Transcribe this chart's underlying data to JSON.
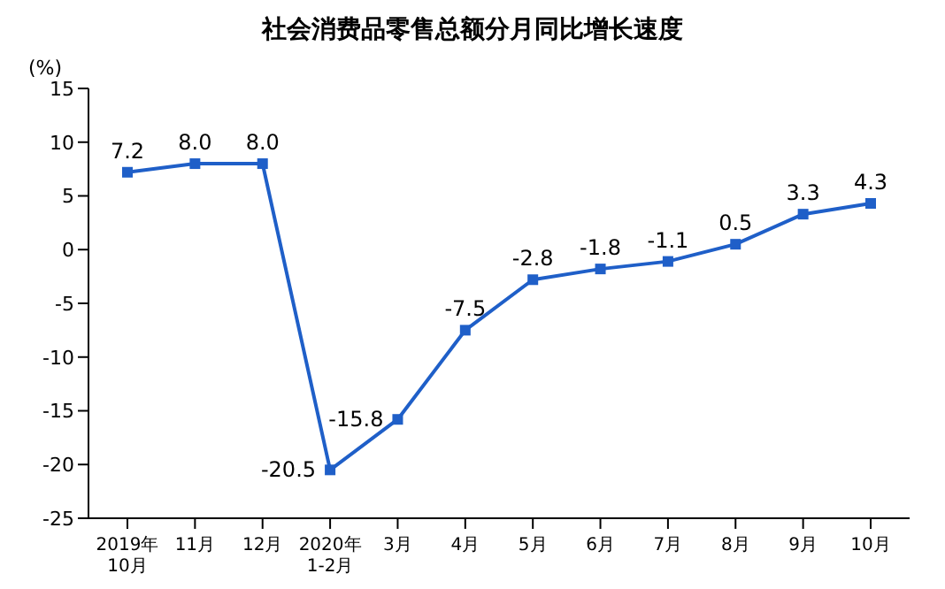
{
  "chart_data": {
    "type": "line",
    "title": "社会消费品零售总额分月同比增长速度",
    "ylabel": "(%)",
    "categories": [
      "2019年\n10月",
      "11月",
      "12月",
      "2020年\n1-2月",
      "3月",
      "4月",
      "5月",
      "6月",
      "7月",
      "8月",
      "9月",
      "10月"
    ],
    "series": [
      {
        "color": "#1f5fc8",
        "values": [
          7.2,
          8.0,
          8.0,
          -20.5,
          -15.8,
          -7.5,
          -2.8,
          -1.8,
          -1.1,
          0.5,
          3.3,
          4.3
        ],
        "value_labels": [
          "7.2",
          "8.0",
          "8.0",
          "-20.5",
          "-15.8",
          "-7.5",
          "-2.8",
          "-1.8",
          "-1.1",
          "0.5",
          "3.3",
          "4.3"
        ]
      }
    ],
    "ylim": [
      -25,
      15
    ],
    "yticks": [
      -25,
      -20,
      -15,
      -10,
      -5,
      0,
      5,
      10,
      15
    ],
    "marker": "square",
    "line_style": "solid"
  }
}
